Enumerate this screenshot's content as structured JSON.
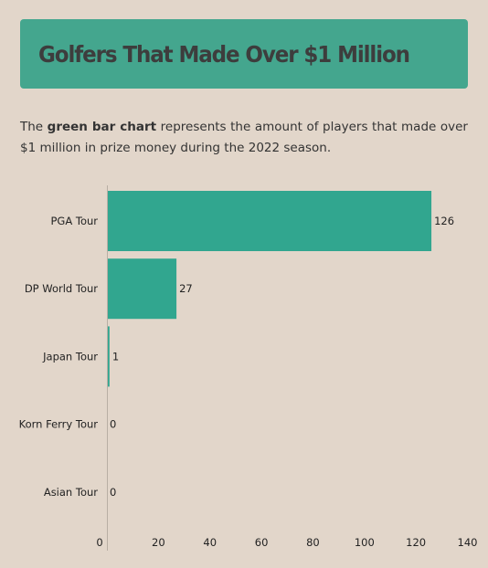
{
  "header": {
    "title": "Golfers That Made Over $1 Million"
  },
  "description": {
    "prefix": "The ",
    "highlight": "green bar chart",
    "suffix": " represents the amount of players that made over $1 million in prize money during the 2022 season."
  },
  "colors": {
    "bar": "#31a68f",
    "header": "#44a68e",
    "background": "#e2d6ca",
    "axis": "#b8aea4"
  },
  "chart_data": {
    "type": "bar",
    "orientation": "horizontal",
    "categories": [
      "PGA Tour",
      "DP World Tour",
      "Japan Tour",
      "Korn Ferry Tour",
      "Asian Tour"
    ],
    "values": [
      126,
      27,
      1,
      0,
      0
    ],
    "data_labels": [
      "126",
      "27",
      "1",
      "0",
      "0"
    ],
    "xlim": [
      0,
      140
    ],
    "xticks": [
      0,
      20,
      40,
      60,
      80,
      100,
      120,
      140
    ],
    "grid": false,
    "title": "",
    "xlabel": "",
    "ylabel": ""
  }
}
